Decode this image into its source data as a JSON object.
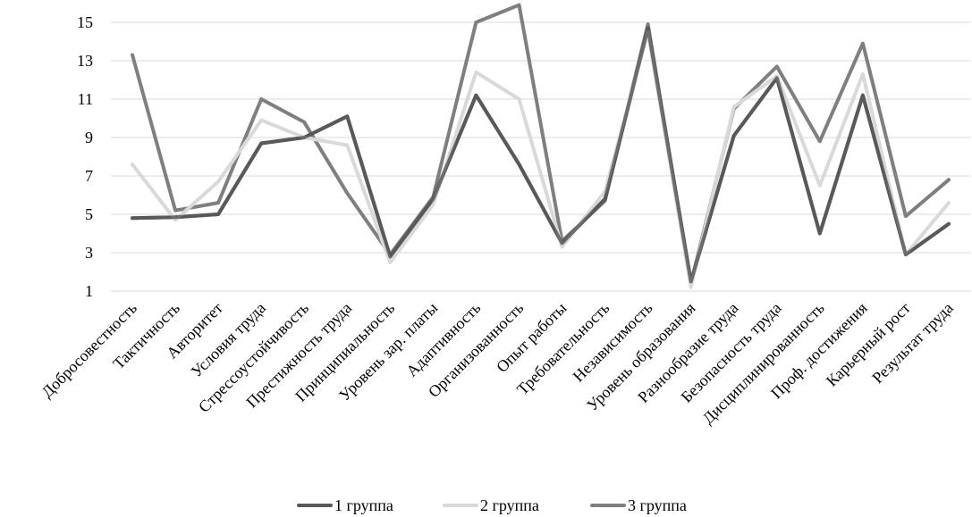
{
  "chart_data": {
    "type": "line",
    "title": "",
    "xlabel": "",
    "ylabel": "",
    "ylim": [
      1,
      15
    ],
    "yticks": [
      1,
      3,
      5,
      7,
      9,
      11,
      13,
      15
    ],
    "grid": true,
    "legend_position": "bottom",
    "categories": [
      "Добросовестность",
      "Тактичность",
      "Авторитет",
      "Условия труда",
      "Стрессоустойчивость",
      "Престижность труда",
      "Принципиальность",
      "Уровень зар. платы",
      "Адаптивность",
      "Организованность",
      "Опыт работы",
      "Требовательность",
      "Независимость",
      "Уровень образования",
      "Разнообразие труда",
      "Безопасность труда",
      "Дисциплинированность",
      "Проф. достижения",
      "Карьерный рост",
      "Результат труда"
    ],
    "series": [
      {
        "name": "1 группа",
        "color": "#595959",
        "values": [
          4.8,
          4.85,
          5.0,
          8.7,
          9.0,
          10.1,
          2.8,
          5.8,
          11.2,
          7.6,
          3.5,
          5.8,
          14.7,
          1.5,
          9.1,
          12.1,
          4.0,
          11.2,
          2.9,
          4.5
        ]
      },
      {
        "name": "2 группа",
        "color": "#d9d9d9",
        "values": [
          7.6,
          4.7,
          6.7,
          9.9,
          9.0,
          8.6,
          2.5,
          5.5,
          12.4,
          11.0,
          3.3,
          6.2,
          14.5,
          1.2,
          10.6,
          12.2,
          6.5,
          12.3,
          2.9,
          5.6
        ]
      },
      {
        "name": "3 группа",
        "color": "#7f7f7f",
        "values": [
          13.3,
          5.2,
          5.6,
          11.0,
          9.8,
          6.1,
          2.9,
          5.9,
          15.0,
          15.9,
          3.6,
          5.7,
          14.9,
          1.4,
          10.5,
          12.7,
          8.8,
          13.9,
          4.9,
          6.8
        ]
      }
    ]
  }
}
